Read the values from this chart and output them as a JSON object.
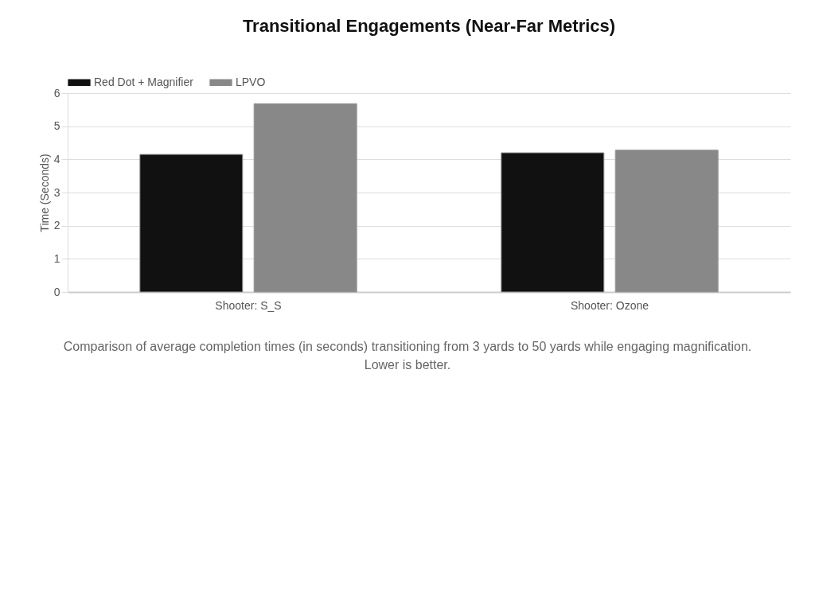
{
  "chart_data": {
    "type": "bar",
    "title": "Transitional Engagements (Near-Far Metrics)",
    "ylabel": "Time (Seconds)",
    "categories": [
      "Shooter: S_S",
      "Shooter: Ozone"
    ],
    "series": [
      {
        "name": "Red Dot + Magnifier",
        "color": "#111111",
        "values": [
          4.15,
          4.2
        ]
      },
      {
        "name": "LPVO",
        "color": "#888888",
        "values": [
          5.68,
          4.28
        ]
      }
    ],
    "ylim": [
      0,
      6
    ],
    "yticks": [
      0,
      1,
      2,
      3,
      4,
      5,
      6
    ],
    "grid": "y",
    "legend": "top",
    "annotations": [
      "Comparison of average completion times (in seconds) transitioning from 3 yards to 50 yards while engaging magnification. Lower is better."
    ]
  }
}
